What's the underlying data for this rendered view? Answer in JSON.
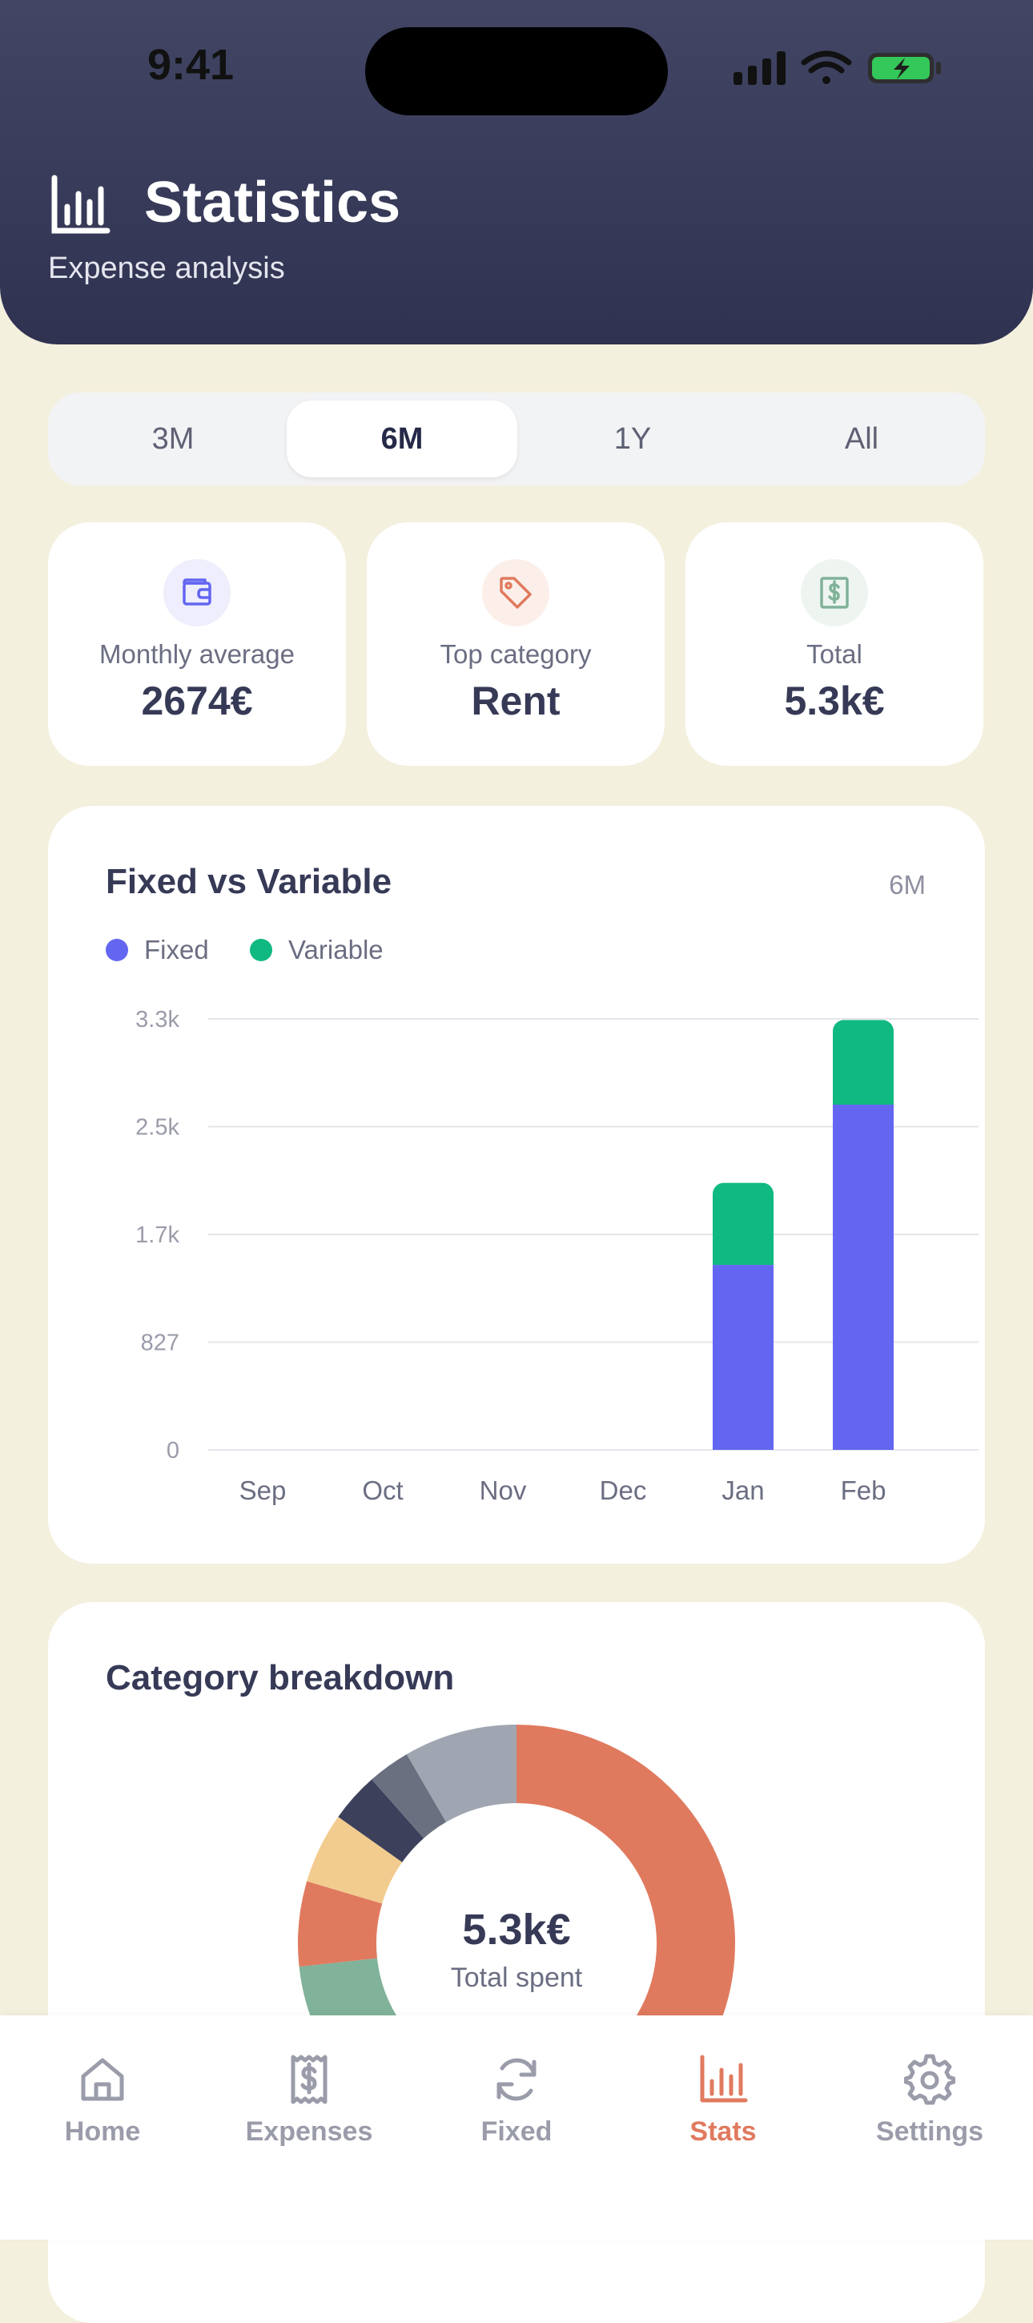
{
  "status_bar": {
    "time": "9:41"
  },
  "header": {
    "title": "Statistics",
    "subtitle": "Expense analysis"
  },
  "period_selector": {
    "options": [
      "3M",
      "6M",
      "1Y",
      "All"
    ],
    "selected": "6M"
  },
  "stats": [
    {
      "label": "Monthly average",
      "value": "2674€",
      "icon": "wallet-icon",
      "color": "#6366F1",
      "bg": "#EEEEFC"
    },
    {
      "label": "Top category",
      "value": "Rent",
      "icon": "tag-icon",
      "color": "#E07A5F",
      "bg": "#FCEFEA"
    },
    {
      "label": "Total",
      "value": "5.3k€",
      "icon": "dollar-receipt-icon",
      "color": "#81B29A",
      "bg": "#EEF5F1"
    }
  ],
  "fixed_vs_variable": {
    "title": "Fixed vs Variable",
    "range": "6M",
    "legend": [
      {
        "label": "Fixed",
        "color": "#6366F1"
      },
      {
        "label": "Variable",
        "color": "#10B981"
      }
    ]
  },
  "chart_data": {
    "type": "bar",
    "stacked": true,
    "categories": [
      "Sep",
      "Oct",
      "Nov",
      "Dec",
      "Jan",
      "Feb"
    ],
    "series": [
      {
        "name": "Fixed",
        "values": [
          0,
          0,
          0,
          0,
          1420,
          2650
        ],
        "color": "#6366F1"
      },
      {
        "name": "Variable",
        "values": [
          0,
          0,
          0,
          0,
          630,
          650
        ],
        "color": "#10B981"
      }
    ],
    "y_ticks": [
      "0",
      "827",
      "1.7k",
      "2.5k",
      "3.3k"
    ],
    "ylim": [
      0,
      3308
    ],
    "grid": true
  },
  "category_breakdown": {
    "title": "Category breakdown",
    "center_value": "5.3k€",
    "center_label": "Total spent",
    "slices": [
      {
        "value": 50,
        "color": "#E07A5F"
      },
      {
        "value": 20,
        "color": "#81B29A"
      },
      {
        "value": 6,
        "color": "#E07A5F"
      },
      {
        "value": 5,
        "color": "#F2CC8F"
      },
      {
        "value": 3.5,
        "color": "#3D405B"
      },
      {
        "value": 3,
        "color": "#6B7080"
      },
      {
        "value": 8,
        "color": "#A0A6B1"
      }
    ]
  },
  "tab_bar": {
    "items": [
      {
        "label": "Home",
        "icon": "home-icon"
      },
      {
        "label": "Expenses",
        "icon": "receipt-icon"
      },
      {
        "label": "Fixed",
        "icon": "refresh-icon"
      },
      {
        "label": "Stats",
        "icon": "bar-chart-icon"
      },
      {
        "label": "Settings",
        "icon": "gear-icon"
      }
    ],
    "active": "Stats",
    "active_color": "#E07A5F",
    "inactive_color": "#9A9CAA"
  }
}
